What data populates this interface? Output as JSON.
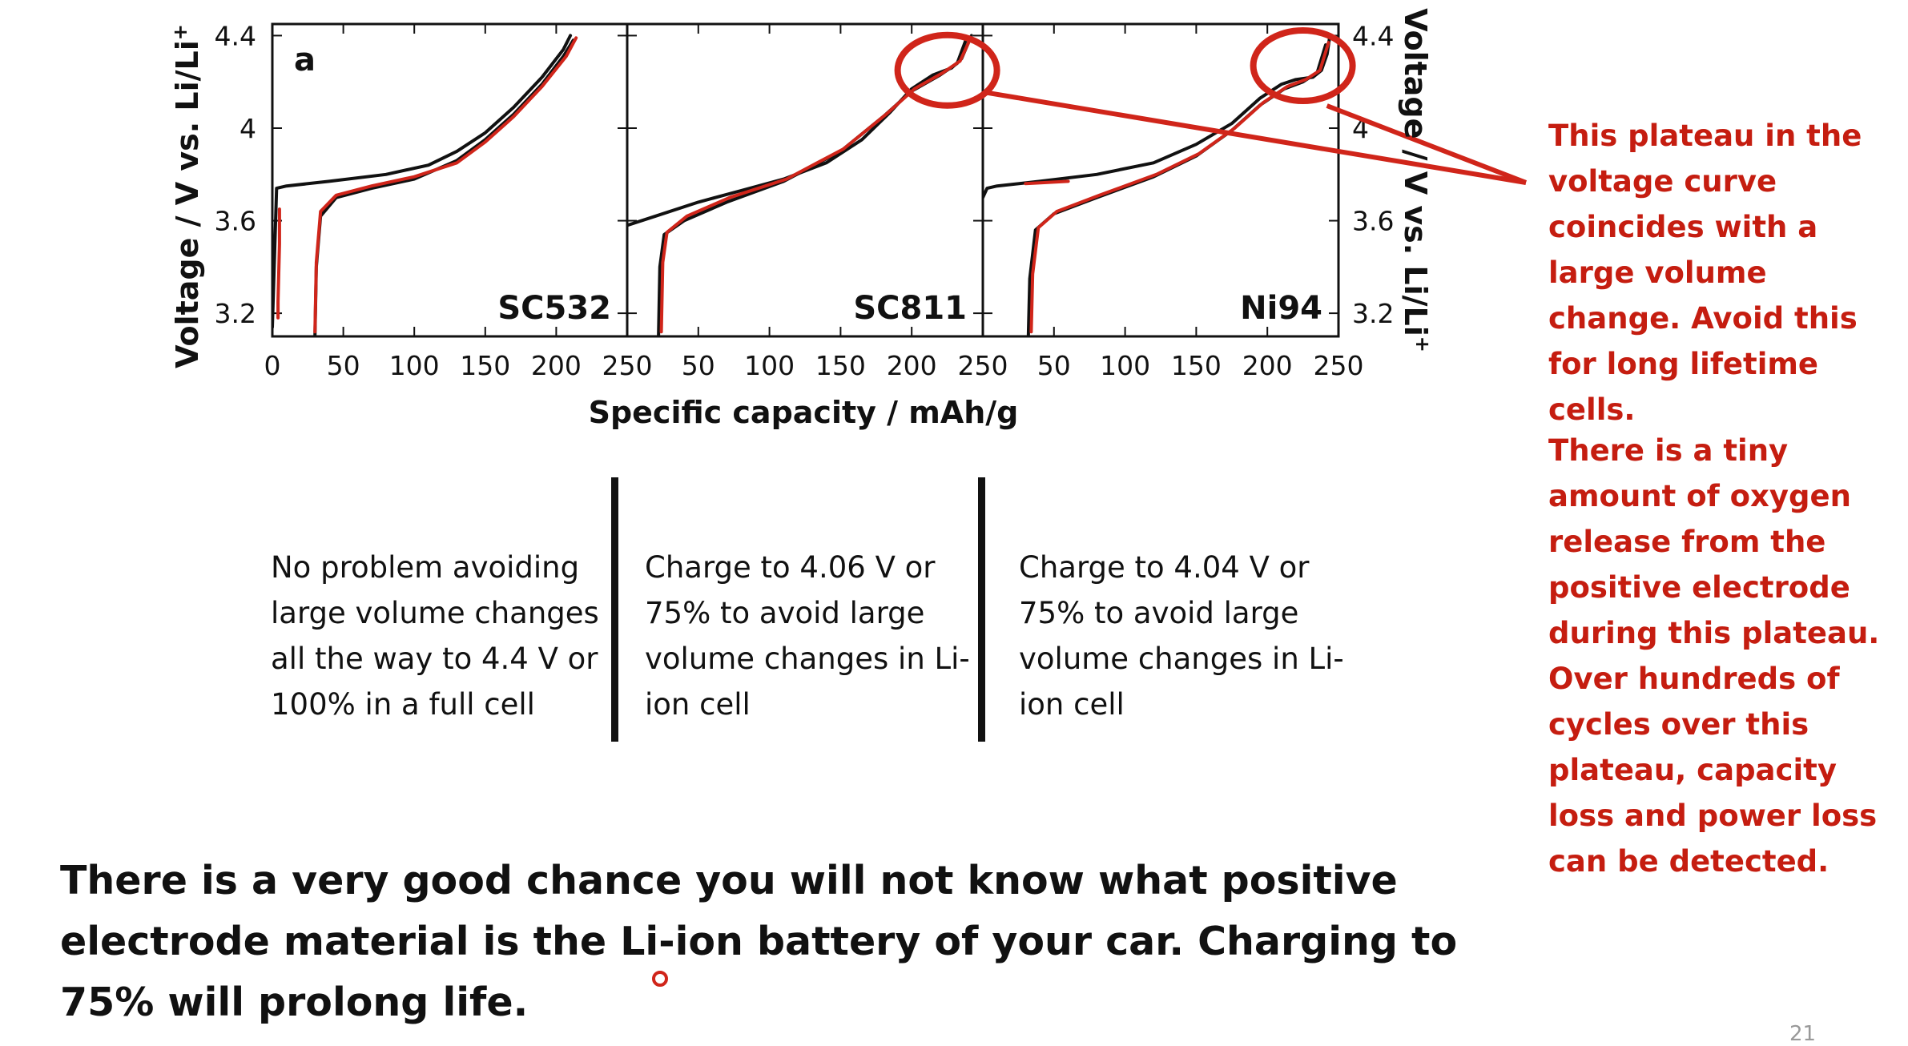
{
  "chart_data": {
    "type": "line",
    "ylabel_left": "Voltage / V vs. Li/Li",
    "ylabel_right": "Voltage / V vs. Li/Li",
    "ylabel_superscript": "+",
    "xlabel": "Specific capacity / mAh/g",
    "panel_letter": "a",
    "ylim": [
      3.1,
      4.45
    ],
    "yticks": [
      3.2,
      3.6,
      4,
      4.4
    ],
    "ytick_labels": [
      "3.2",
      "3.6",
      "4",
      "4.4"
    ],
    "xlim": [
      0,
      250
    ],
    "xticks": [
      0,
      50,
      100,
      150,
      200,
      250
    ],
    "xtick_labels_panel1": [
      "0",
      "50",
      "100",
      "150",
      "200",
      "250"
    ],
    "xtick_labels_panel2": [
      "50",
      "100",
      "150",
      "200",
      "250"
    ],
    "xtick_labels_panel3": [
      "50",
      "100",
      "150",
      "200",
      "250"
    ],
    "colors": {
      "series_black": "#111111",
      "series_red": "#d0251a",
      "annotation": "#d0251a"
    },
    "panels": [
      {
        "name": "SC532",
        "series": [
          {
            "color": "#111111",
            "x": [
              0,
              3,
              10,
              40,
              80,
              110,
              130,
              150,
              170,
              190,
              205,
              210
            ],
            "y": [
              3.14,
              3.74,
              3.75,
              3.77,
              3.8,
              3.84,
              3.9,
              3.98,
              4.09,
              4.22,
              4.34,
              4.4
            ]
          },
          {
            "color": "#111111",
            "x": [
              30,
              31,
              34,
              45,
              70,
              100,
              130,
              150,
              170,
              190,
              205,
              212
            ],
            "y": [
              3.1,
              3.4,
              3.62,
              3.7,
              3.74,
              3.78,
              3.86,
              3.95,
              4.06,
              4.19,
              4.31,
              4.38
            ]
          },
          {
            "color": "#d0251a",
            "x": [
              30,
              31,
              34,
              45,
              70,
              100,
              130,
              150,
              170,
              190,
              207,
              214
            ],
            "y": [
              3.12,
              3.42,
              3.64,
              3.71,
              3.75,
              3.79,
              3.85,
              3.94,
              4.05,
              4.18,
              4.31,
              4.39
            ]
          },
          {
            "color": "#d0251a",
            "x": [
              4,
              4,
              5,
              5
            ],
            "y": [
              3.18,
              3.25,
              3.5,
              3.65
            ]
          }
        ]
      },
      {
        "name": "SC811",
        "series": [
          {
            "color": "#111111",
            "x": [
              0,
              20,
              50,
              80,
              110,
              140,
              165,
              185,
              200,
              215,
              228,
              235,
              242
            ],
            "y": [
              3.58,
              3.62,
              3.68,
              3.73,
              3.78,
              3.85,
              3.95,
              4.07,
              4.17,
              4.23,
              4.26,
              4.3,
              4.4
            ]
          },
          {
            "color": "#111111",
            "x": [
              22,
              23,
              26,
              40,
              70,
              110,
              150,
              180,
              200,
              220,
              232,
              238
            ],
            "y": [
              3.1,
              3.4,
              3.54,
              3.6,
              3.68,
              3.77,
              3.9,
              4.05,
              4.16,
              4.23,
              4.28,
              4.38
            ]
          },
          {
            "color": "#d0251a",
            "x": [
              24,
              25,
              28,
              42,
              72,
              112,
              152,
              182,
              202,
              222,
              234,
              240
            ],
            "y": [
              3.12,
              3.42,
              3.55,
              3.62,
              3.7,
              3.78,
              3.91,
              4.06,
              4.17,
              4.24,
              4.29,
              4.37
            ]
          }
        ]
      },
      {
        "name": "Ni94",
        "series": [
          {
            "color": "#111111",
            "x": [
              0,
              3,
              10,
              40,
              80,
              120,
              150,
              175,
              195,
              210,
              220,
              232,
              238,
              242,
              244
            ],
            "y": [
              3.7,
              3.74,
              3.75,
              3.77,
              3.8,
              3.85,
              3.93,
              4.02,
              4.13,
              4.19,
              4.21,
              4.22,
              4.25,
              4.32,
              4.4
            ]
          },
          {
            "color": "#111111",
            "x": [
              32,
              33,
              37,
              50,
              80,
              120,
              150,
              175,
              195,
              212,
              225,
              235,
              241
            ],
            "y": [
              3.1,
              3.35,
              3.56,
              3.63,
              3.7,
              3.79,
              3.88,
              3.99,
              4.1,
              4.17,
              4.2,
              4.24,
              4.36
            ]
          },
          {
            "color": "#d0251a",
            "x": [
              34,
              35,
              39,
              52,
              82,
              122,
              152,
              177,
              197,
              214,
              227,
              237,
              243
            ],
            "y": [
              3.12,
              3.37,
              3.57,
              3.64,
              3.71,
              3.8,
              3.89,
              4.0,
              4.11,
              4.18,
              4.21,
              4.25,
              4.37
            ]
          },
          {
            "color": "#d0251a",
            "x": [
              30,
              60
            ],
            "y": [
              3.76,
              3.77
            ]
          }
        ]
      }
    ]
  },
  "captions": [
    "No problem avoiding large volume changes all the way to 4.4 V or 100%  in a full cell",
    "Charge to 4.06 V or 75%  to avoid large volume changes in Li-ion cell",
    "Charge to 4.04 V or 75% to avoid large volume changes in Li-ion cell"
  ],
  "note_1": "This plateau in the voltage curve coincides with a large volume change. Avoid this for long lifetime cells.",
  "note_2": "There is a tiny amount of oxygen release from the positive electrode during this plateau. Over hundreds of cycles over this plateau, capacity loss and power loss can be detected.",
  "conclusion": "There is a very good chance you will not know what positive electrode material is the Li-ion battery of your car.  Charging to 75% will prolong life.",
  "page_number": "21"
}
